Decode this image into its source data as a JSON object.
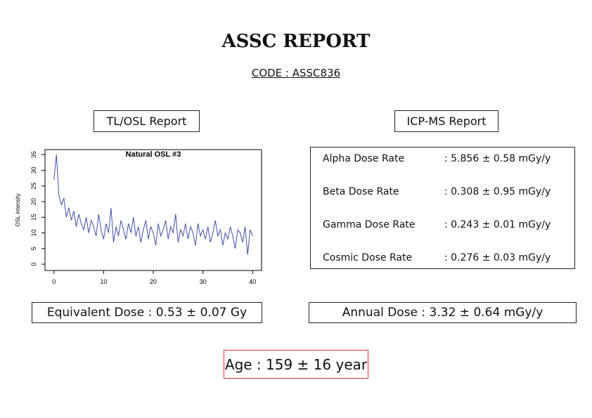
{
  "header": {
    "title": "ASSC REPORT",
    "code": "CODE : ASSC836"
  },
  "tl_osl": {
    "heading": "TL/OSL Report",
    "equivalent_dose": "Equivalent Dose : 0.53 ± 0.07 Gy"
  },
  "chart_data": {
    "type": "line",
    "title": "Natural OSL #3",
    "y_label": "OSL intensity",
    "x": [
      0,
      0.5,
      1,
      1.5,
      2,
      2.5,
      3,
      3.5,
      4,
      4.5,
      5,
      5.5,
      6,
      6.5,
      7,
      7.5,
      8,
      8.5,
      9,
      9.5,
      10,
      10.5,
      11,
      11.5,
      12,
      12.5,
      13,
      13.5,
      14,
      14.5,
      15,
      15.5,
      16,
      16.5,
      17,
      17.5,
      18,
      18.5,
      19,
      19.5,
      20,
      20.5,
      21,
      21.5,
      22,
      22.5,
      23,
      23.5,
      24,
      24.5,
      25,
      25.5,
      26,
      26.5,
      27,
      27.5,
      28,
      28.5,
      29,
      29.5,
      30,
      30.5,
      31,
      31.5,
      32,
      32.5,
      33,
      33.5,
      34,
      34.5,
      35,
      35.5,
      36,
      36.5,
      37,
      37.5,
      38,
      38.5,
      39,
      39.5,
      40
    ],
    "series": [
      {
        "color": "#3f51a5",
        "values": [
          27,
          35,
          22,
          19,
          21,
          15,
          18,
          14,
          17,
          12,
          16,
          13,
          11,
          15,
          10,
          14,
          12,
          9,
          16,
          11,
          8,
          13,
          10,
          18,
          7,
          12,
          9,
          14,
          11,
          8,
          13,
          10,
          15,
          9,
          12,
          7,
          11,
          14,
          8,
          12,
          10,
          6,
          13,
          9,
          11,
          14,
          8,
          12,
          10,
          16,
          7,
          11,
          9,
          13,
          8,
          12,
          10,
          6,
          13,
          9,
          11,
          8,
          12,
          7,
          10,
          14,
          9,
          11,
          6,
          10,
          8,
          12,
          9,
          5,
          11,
          10,
          7,
          12,
          3,
          11,
          9
        ]
      }
    ],
    "xlim": [
      -1.8,
      41.8
    ],
    "ylim": [
      -2,
      36.6
    ],
    "xticks": [
      0,
      10,
      20,
      30,
      40
    ],
    "yticks": [
      0,
      5,
      10,
      15,
      20,
      25,
      30,
      35
    ]
  },
  "icp_ms": {
    "heading": "ICP-MS Report",
    "rows": [
      [
        "Alpha Dose Rate",
        ": 5.856 ± 0.58 mGy/y"
      ],
      [
        "Beta Dose Rate",
        ": 0.308 ± 0.95 mGy/y"
      ],
      [
        "Gamma Dose Rate",
        ": 0.243 ± 0.01 mGy/y"
      ],
      [
        "Cosmic Dose Rate",
        ": 0.276 ± 0.03 mGy/y"
      ]
    ],
    "annual_dose": "Annual Dose : 3.32 ± 0.64 mGy/y"
  },
  "age": "Age : 159 ± 16 year"
}
